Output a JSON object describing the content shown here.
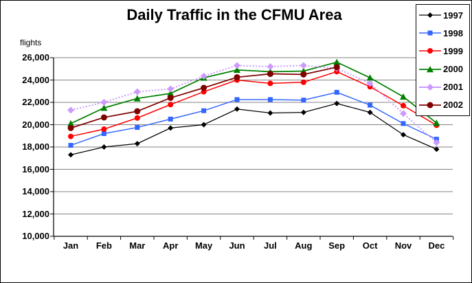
{
  "chart_data": {
    "type": "line",
    "title": "Daily Traffic in the CFMU Area",
    "ylabel": "flights",
    "xlabel": "",
    "categories": [
      "Jan",
      "Feb",
      "Mar",
      "Apr",
      "May",
      "Jun",
      "Jul",
      "Aug",
      "Sep",
      "Oct",
      "Nov",
      "Dec"
    ],
    "ylim": [
      10000,
      26000
    ],
    "ytick_step": 2000,
    "yticks": [
      {
        "value": 26000,
        "label": "26,000"
      },
      {
        "value": 24000,
        "label": "24,000"
      },
      {
        "value": 22000,
        "label": "22,000"
      },
      {
        "value": 20000,
        "label": "20,000"
      },
      {
        "value": 18000,
        "label": "18,000"
      },
      {
        "value": 16000,
        "label": "16,000"
      },
      {
        "value": 14000,
        "label": "14,000"
      },
      {
        "value": 12000,
        "label": "12,000"
      },
      {
        "value": 10000,
        "label": "10,000"
      }
    ],
    "grid": true,
    "legend_position": "top-right",
    "colors": {
      "grid": "#808080",
      "axis": "#000000"
    },
    "series": [
      {
        "name": "1997",
        "color": "#000000",
        "marker": "diamond",
        "marker_size": 4,
        "line_style": "solid",
        "line_width": 1.25,
        "values": [
          17300,
          18000,
          18300,
          19700,
          20000,
          21400,
          21050,
          21100,
          21900,
          21100,
          19100,
          17800
        ]
      },
      {
        "name": "1998",
        "color": "#3366FF",
        "marker": "square",
        "marker_size": 3.5,
        "line_style": "solid",
        "line_width": 1.5,
        "values": [
          18150,
          19200,
          19750,
          20500,
          21250,
          22250,
          22250,
          22200,
          22900,
          21750,
          20100,
          18700
        ]
      },
      {
        "name": "1999",
        "color": "#FF0000",
        "marker": "circle",
        "marker_size": 4,
        "line_style": "solid",
        "line_width": 1.5,
        "values": [
          18950,
          19600,
          20600,
          21800,
          22950,
          24000,
          23700,
          23800,
          24750,
          23400,
          21700,
          19950
        ]
      },
      {
        "name": "2000",
        "color": "#008000",
        "marker": "triangle",
        "marker_size": 5,
        "line_style": "solid",
        "line_width": 1.75,
        "values": [
          20100,
          21500,
          22350,
          22800,
          24200,
          24900,
          24750,
          24800,
          25600,
          24200,
          22500,
          20150
        ]
      },
      {
        "name": "2001",
        "color": "#CC99FF",
        "marker": "diamond",
        "marker_size": 5,
        "line_style": "dotted",
        "line_width": 2,
        "values": [
          21300,
          22000,
          22950,
          23200,
          24350,
          25300,
          25200,
          25300,
          25050,
          23700,
          21000,
          18400
        ]
      },
      {
        "name": "2002",
        "color": "#800000",
        "marker": "circle",
        "marker_size": 4.5,
        "line_style": "solid",
        "line_width": 1.75,
        "values": [
          19700,
          20650,
          21200,
          22400,
          23300,
          24250,
          24550,
          24500,
          25150,
          null,
          null,
          null
        ]
      }
    ]
  }
}
